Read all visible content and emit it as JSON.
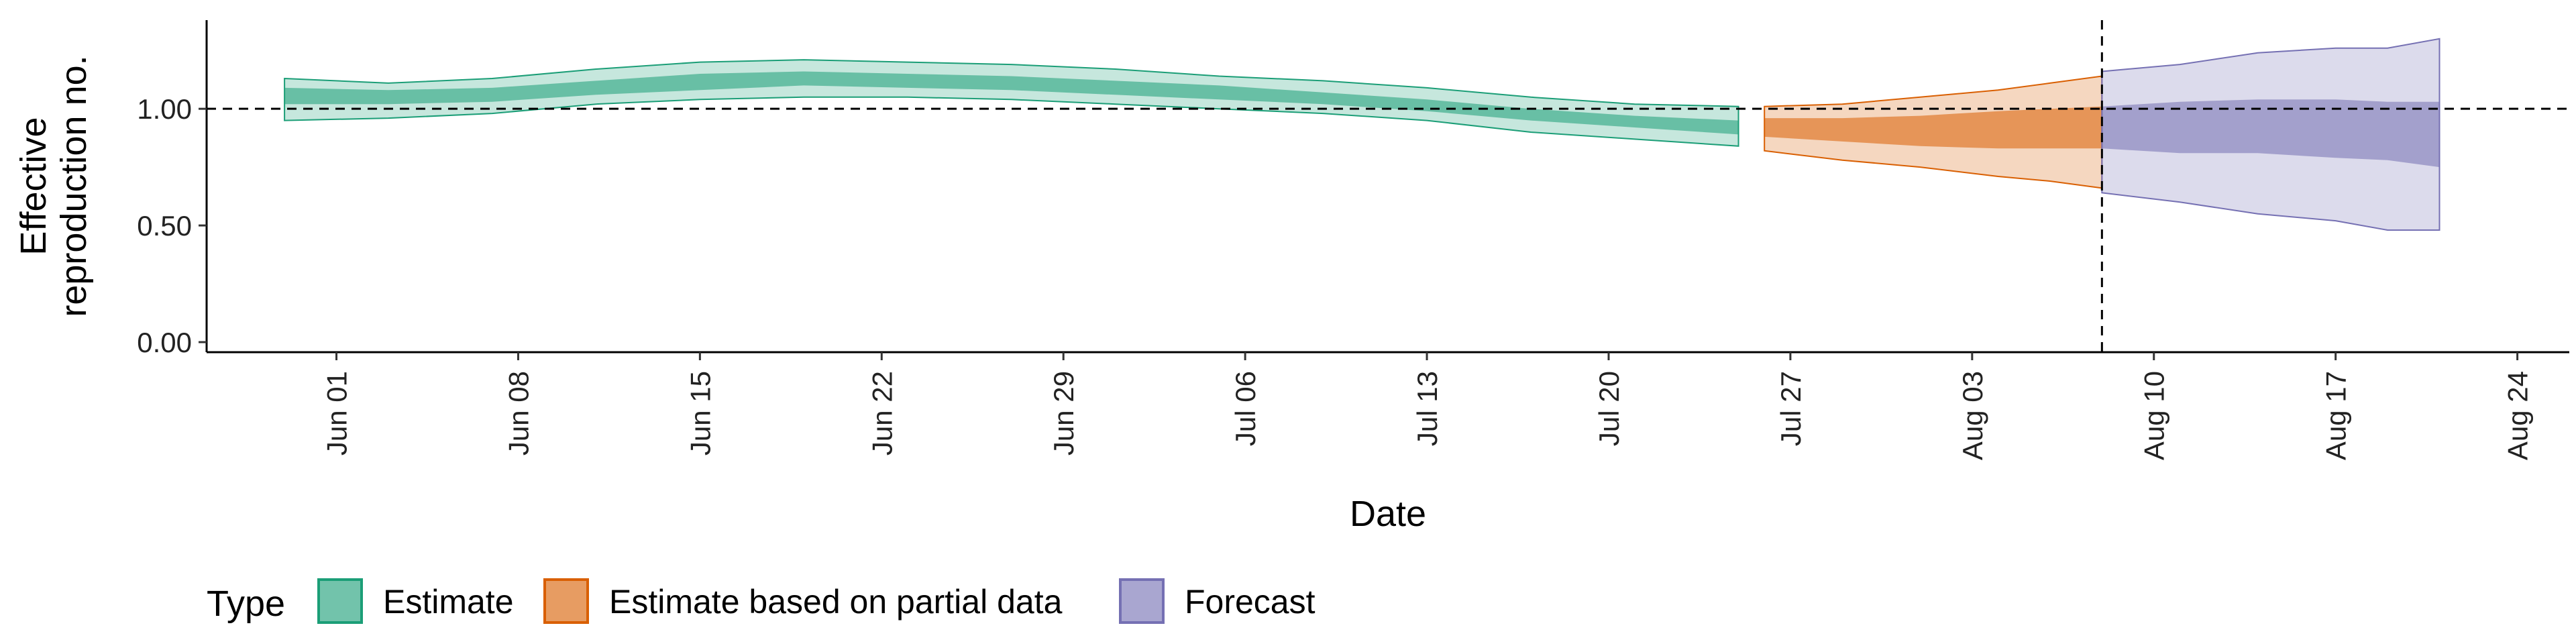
{
  "chart_data": {
    "type": "area",
    "title": "",
    "xlabel": "Date",
    "ylabel": [
      "Effective",
      "reproduction no."
    ],
    "ylim": [
      0,
      1.38
    ],
    "yticks": [
      0.0,
      0.5,
      1.0
    ],
    "ytick_labels": [
      "0.00",
      "0.50",
      "1.00"
    ],
    "xlim": [
      "2020-05-27",
      "2020-08-26"
    ],
    "xticks": [
      "2020-06-01",
      "2020-06-08",
      "2020-06-15",
      "2020-06-22",
      "2020-06-29",
      "2020-07-06",
      "2020-07-13",
      "2020-07-20",
      "2020-07-27",
      "2020-08-03",
      "2020-08-10",
      "2020-08-17",
      "2020-08-24"
    ],
    "xtick_labels": [
      "Jun 01",
      "Jun 08",
      "Jun 15",
      "Jun 22",
      "Jun 29",
      "Jul 06",
      "Jul 13",
      "Jul 20",
      "Jul 27",
      "Aug 03",
      "Aug 10",
      "Aug 17",
      "Aug 24"
    ],
    "reference_hline": 1.0,
    "reference_vline": "2020-08-08",
    "grid": false,
    "legend": {
      "title": "Type",
      "position": "bottom-left",
      "items": [
        "Estimate",
        "Estimate based on partial data",
        "Forecast"
      ]
    },
    "series": [
      {
        "name": "Estimate",
        "fill_color": "#1b9e77",
        "points": [
          {
            "x": "2020-05-30",
            "outer": [
              0.95,
              1.13
            ],
            "inner": [
              1.02,
              1.09
            ]
          },
          {
            "x": "2020-06-03",
            "outer": [
              0.96,
              1.11
            ],
            "inner": [
              1.02,
              1.08
            ]
          },
          {
            "x": "2020-06-07",
            "outer": [
              0.98,
              1.13
            ],
            "inner": [
              1.03,
              1.09
            ]
          },
          {
            "x": "2020-06-11",
            "outer": [
              1.02,
              1.17
            ],
            "inner": [
              1.06,
              1.12
            ]
          },
          {
            "x": "2020-06-15",
            "outer": [
              1.04,
              1.2
            ],
            "inner": [
              1.08,
              1.15
            ]
          },
          {
            "x": "2020-06-19",
            "outer": [
              1.05,
              1.21
            ],
            "inner": [
              1.1,
              1.16
            ]
          },
          {
            "x": "2020-06-23",
            "outer": [
              1.05,
              1.2
            ],
            "inner": [
              1.09,
              1.15
            ]
          },
          {
            "x": "2020-06-27",
            "outer": [
              1.04,
              1.19
            ],
            "inner": [
              1.08,
              1.14
            ]
          },
          {
            "x": "2020-07-01",
            "outer": [
              1.02,
              1.17
            ],
            "inner": [
              1.06,
              1.12
            ]
          },
          {
            "x": "2020-07-05",
            "outer": [
              1.0,
              1.14
            ],
            "inner": [
              1.04,
              1.1
            ]
          },
          {
            "x": "2020-07-09",
            "outer": [
              0.98,
              1.12
            ],
            "inner": [
              1.02,
              1.07
            ]
          },
          {
            "x": "2020-07-13",
            "outer": [
              0.95,
              1.09
            ],
            "inner": [
              0.99,
              1.04
            ]
          },
          {
            "x": "2020-07-17",
            "outer": [
              0.9,
              1.05
            ],
            "inner": [
              0.95,
              1.0
            ]
          },
          {
            "x": "2020-07-21",
            "outer": [
              0.87,
              1.02
            ],
            "inner": [
              0.92,
              0.97
            ]
          },
          {
            "x": "2020-07-25",
            "outer": [
              0.84,
              1.01
            ],
            "inner": [
              0.89,
              0.95
            ]
          }
        ]
      },
      {
        "name": "Estimate based on partial data",
        "fill_color": "#d95f02",
        "points": [
          {
            "x": "2020-07-26",
            "outer": [
              0.82,
              1.01
            ],
            "inner": [
              0.88,
              0.96
            ]
          },
          {
            "x": "2020-07-29",
            "outer": [
              0.78,
              1.02
            ],
            "inner": [
              0.86,
              0.96
            ]
          },
          {
            "x": "2020-08-01",
            "outer": [
              0.75,
              1.05
            ],
            "inner": [
              0.84,
              0.97
            ]
          },
          {
            "x": "2020-08-04",
            "outer": [
              0.71,
              1.08
            ],
            "inner": [
              0.83,
              0.99
            ]
          },
          {
            "x": "2020-08-06",
            "outer": [
              0.69,
              1.11
            ],
            "inner": [
              0.83,
              1.0
            ]
          },
          {
            "x": "2020-08-08",
            "outer": [
              0.66,
              1.14
            ],
            "inner": [
              0.83,
              1.01
            ]
          }
        ]
      },
      {
        "name": "Forecast",
        "fill_color": "#7570b3",
        "points": [
          {
            "x": "2020-08-08",
            "outer": [
              0.64,
              1.16
            ],
            "inner": [
              0.83,
              1.01
            ]
          },
          {
            "x": "2020-08-11",
            "outer": [
              0.6,
              1.19
            ],
            "inner": [
              0.81,
              1.03
            ]
          },
          {
            "x": "2020-08-14",
            "outer": [
              0.55,
              1.24
            ],
            "inner": [
              0.81,
              1.04
            ]
          },
          {
            "x": "2020-08-17",
            "outer": [
              0.52,
              1.26
            ],
            "inner": [
              0.79,
              1.04
            ]
          },
          {
            "x": "2020-08-19",
            "outer": [
              0.48,
              1.26
            ],
            "inner": [
              0.78,
              1.03
            ]
          },
          {
            "x": "2020-08-21",
            "outer": [
              0.48,
              1.3
            ],
            "inner": [
              0.75,
              1.03
            ]
          }
        ]
      }
    ]
  }
}
